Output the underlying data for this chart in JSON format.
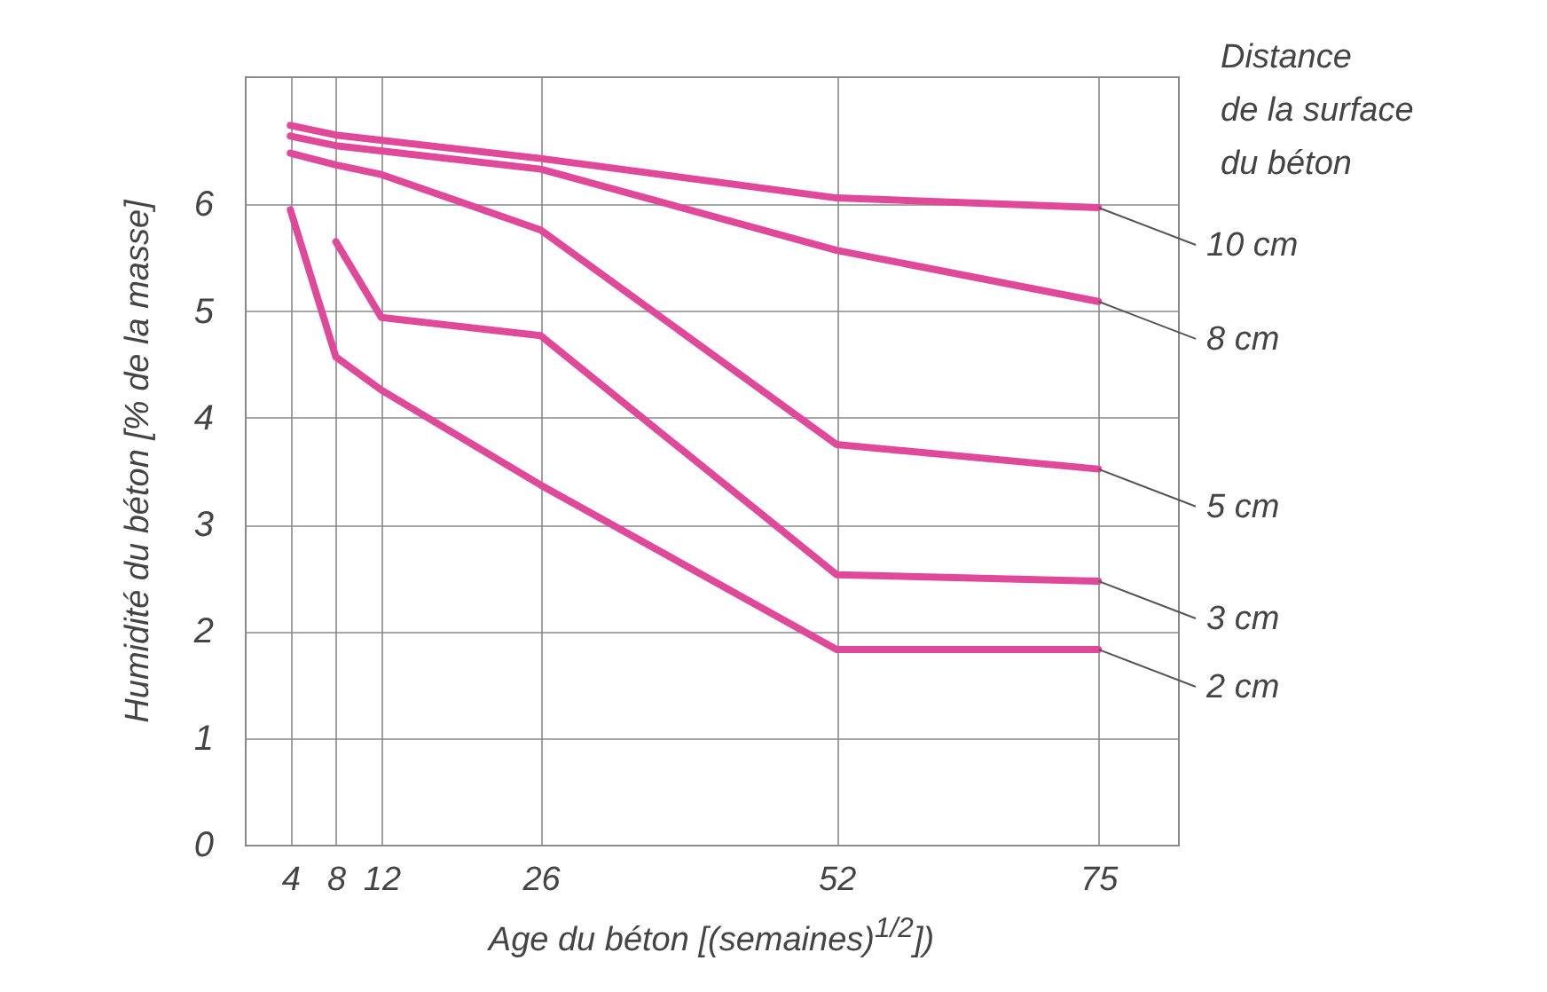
{
  "chart_data": {
    "type": "line",
    "xlabel": "Age du béton [(semaines)$^{1/2}$])",
    "ylabel": "Humidité du béton [% de la masse]",
    "legend_title": "Distance\nde la surface\ndu béton",
    "xlim": [
      0,
      82
    ],
    "xticks": [
      4,
      8,
      12,
      26,
      52,
      75
    ],
    "ylim": [
      0,
      7.2
    ],
    "yticks": [
      0,
      1,
      2,
      3,
      4,
      5,
      6
    ],
    "grid": true,
    "marker": "none",
    "line_style": "solid",
    "series": [
      {
        "name": "10 cm",
        "color": "#e0489a",
        "x": [
          4,
          8,
          26,
          52,
          75
        ],
        "values": [
          6.74,
          6.65,
          6.43,
          6.06,
          5.97
        ]
      },
      {
        "name": "8 cm",
        "color": "#e0489a",
        "x": [
          4,
          8,
          26,
          52,
          75
        ],
        "values": [
          6.64,
          6.55,
          6.33,
          5.57,
          5.09
        ]
      },
      {
        "name": "5 cm",
        "color": "#e0489a",
        "x": [
          4,
          8,
          12,
          26,
          52,
          75
        ],
        "values": [
          6.48,
          6.37,
          6.28,
          5.76,
          3.75,
          3.52
        ]
      },
      {
        "name": "3 cm",
        "color": "#e0489a",
        "x": [
          8,
          12,
          26,
          52,
          75
        ],
        "values": [
          5.65,
          4.94,
          4.77,
          2.53,
          2.47
        ]
      },
      {
        "name": "2 cm",
        "color": "#e0489a",
        "x": [
          4,
          8,
          12,
          26,
          52,
          75
        ],
        "values": [
          5.95,
          4.57,
          4.26,
          3.37,
          1.83,
          1.83
        ]
      }
    ]
  }
}
